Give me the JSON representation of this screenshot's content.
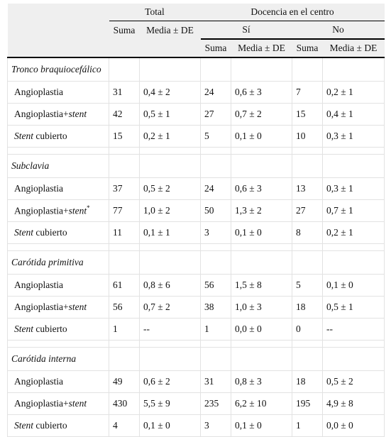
{
  "header": {
    "total": "Total",
    "docencia": "Docencia en el centro",
    "si": "Sí",
    "no": "No",
    "suma": "Suma",
    "media": "Media ± DE"
  },
  "groups": [
    {
      "name": "Tronco braquiocefálico",
      "rows": [
        {
          "label": [
            {
              "text": "Angioplastia",
              "italic": false
            }
          ],
          "cells": [
            31,
            "0,4 ± 2",
            24,
            "0,6 ± 3",
            7,
            "0,2 ± 1"
          ]
        },
        {
          "label": [
            {
              "text": "Angioplastia+",
              "italic": false
            },
            {
              "text": "stent",
              "italic": true
            }
          ],
          "cells": [
            42,
            "0,5 ± 1",
            27,
            "0,7 ± 2",
            15,
            "0,4 ± 1"
          ]
        },
        {
          "label": [
            {
              "text": "Stent",
              "italic": true
            },
            {
              "text": " cubierto",
              "italic": false
            }
          ],
          "cells": [
            15,
            "0,2 ± 1",
            5,
            "0,1 ± 0",
            10,
            "0,3 ± 1"
          ]
        }
      ]
    },
    {
      "name": "Subclavia",
      "rows": [
        {
          "label": [
            {
              "text": "Angioplastia",
              "italic": false
            }
          ],
          "cells": [
            37,
            "0,5 ± 2",
            24,
            "0,6 ± 3",
            13,
            "0,3 ± 1"
          ]
        },
        {
          "label": [
            {
              "text": "Angioplastia+",
              "italic": false
            },
            {
              "text": "stent",
              "italic": true
            },
            {
              "text": "*",
              "italic": false,
              "sup": true
            }
          ],
          "cells": [
            77,
            "1,0 ± 2",
            50,
            "1,3 ± 2",
            27,
            "0,7 ± 1"
          ]
        },
        {
          "label": [
            {
              "text": "Stent",
              "italic": true
            },
            {
              "text": " cubierto",
              "italic": false
            }
          ],
          "cells": [
            11,
            "0,1 ± 1",
            3,
            "0,1 ± 0",
            8,
            "0,2 ± 1"
          ]
        }
      ]
    },
    {
      "name": "Carótida primitiva",
      "rows": [
        {
          "label": [
            {
              "text": "Angioplastia",
              "italic": false
            }
          ],
          "cells": [
            61,
            "0,8 ± 6",
            56,
            "1,5 ± 8",
            5,
            "0,1 ± 0"
          ]
        },
        {
          "label": [
            {
              "text": "Angioplastia+",
              "italic": false
            },
            {
              "text": "stent",
              "italic": true
            }
          ],
          "cells": [
            56,
            "0,7 ± 2",
            38,
            "1,0 ± 3",
            18,
            "0,5 ± 1"
          ]
        },
        {
          "label": [
            {
              "text": "Stent",
              "italic": true
            },
            {
              "text": " cubierto",
              "italic": false
            }
          ],
          "cells": [
            1,
            "--",
            1,
            "0,0 ± 0",
            0,
            "--"
          ]
        }
      ]
    },
    {
      "name": "Carótida interna",
      "rows": [
        {
          "label": [
            {
              "text": "Angioplastia",
              "italic": false
            }
          ],
          "cells": [
            49,
            "0,6 ± 2",
            31,
            "0,8 ± 3",
            18,
            "0,5 ± 2"
          ]
        },
        {
          "label": [
            {
              "text": "Angioplastia+",
              "italic": false
            },
            {
              "text": "stent",
              "italic": true
            }
          ],
          "cells": [
            430,
            "5,5 ± 9",
            235,
            "6,2 ± 10",
            195,
            "4,9 ± 8"
          ]
        },
        {
          "label": [
            {
              "text": "Stent",
              "italic": true
            },
            {
              "text": " cubierto",
              "italic": false
            }
          ],
          "cells": [
            4,
            "0,1 ± 0",
            3,
            "0,1 ± 0",
            1,
            "0,0 ± 0"
          ]
        }
      ]
    }
  ]
}
